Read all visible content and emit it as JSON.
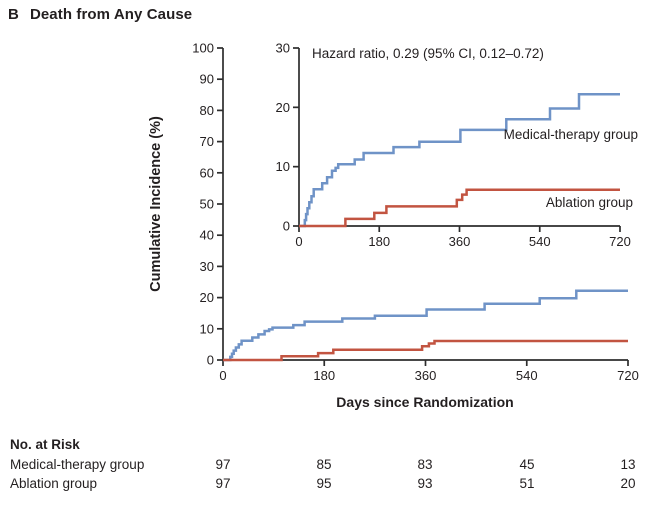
{
  "panel": {
    "letter": "B",
    "title": "Death from Any Cause"
  },
  "colors": {
    "medical": "#6f93c7",
    "ablation": "#c25441",
    "axis": "#2d2d2d",
    "text": "#231f20"
  },
  "chart_data": {
    "type": "line",
    "subtype": "step-cumulative-incidence",
    "title": "Death from Any Cause",
    "xlabel": "Days since Randomization",
    "ylabel": "Cumulative Incidence (%)",
    "annotation": "Hazard ratio, 0.29 (95% CI, 0.12–0.72)",
    "x_ticks": [
      0,
      180,
      360,
      540,
      720
    ],
    "xlim": [
      0,
      720
    ],
    "main_axis": {
      "ylim": [
        0,
        100
      ],
      "y_ticks": [
        0,
        10,
        20,
        30,
        40,
        50,
        60,
        70,
        80,
        90,
        100
      ],
      "grid": false
    },
    "inset_axis": {
      "ylim": [
        0,
        30
      ],
      "y_ticks": [
        0,
        10,
        20,
        30
      ],
      "grid": false
    },
    "legend_position": "inline-right",
    "series": [
      {
        "name": "Medical-therapy group",
        "color_key": "medical",
        "points": [
          [
            0,
            0
          ],
          [
            13,
            1
          ],
          [
            16,
            2
          ],
          [
            19,
            3
          ],
          [
            23,
            4
          ],
          [
            28,
            5
          ],
          [
            33,
            6.2
          ],
          [
            52,
            7.2
          ],
          [
            63,
            8.2
          ],
          [
            74,
            9.3
          ],
          [
            82,
            9.8
          ],
          [
            88,
            10.4
          ],
          [
            125,
            11.2
          ],
          [
            145,
            12.3
          ],
          [
            212,
            13.3
          ],
          [
            270,
            14.2
          ],
          [
            362,
            16.2
          ],
          [
            465,
            18.0
          ],
          [
            563,
            19.8
          ],
          [
            628,
            22.2
          ],
          [
            720,
            22.2
          ]
        ]
      },
      {
        "name": "Ablation group",
        "color_key": "ablation",
        "points": [
          [
            0,
            0
          ],
          [
            104,
            1.2
          ],
          [
            169,
            2.2
          ],
          [
            196,
            3.3
          ],
          [
            354,
            4.4
          ],
          [
            366,
            5.3
          ],
          [
            376,
            6.1
          ],
          [
            720,
            6.1
          ]
        ]
      }
    ]
  },
  "curve_labels": {
    "medical": "Medical-therapy group",
    "ablation": "Ablation group"
  },
  "risk_table": {
    "heading": "No. at Risk",
    "rows": [
      {
        "label": "Medical-therapy group",
        "values": [
          "97",
          "85",
          "83",
          "45",
          "13"
        ]
      },
      {
        "label": "Ablation group",
        "values": [
          "97",
          "95",
          "93",
          "51",
          "20"
        ]
      }
    ]
  }
}
